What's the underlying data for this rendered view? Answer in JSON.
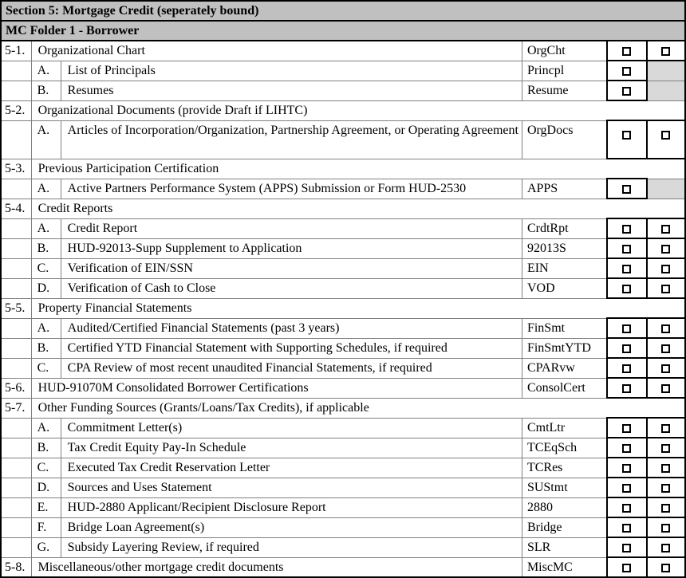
{
  "header": {
    "section_title": "Section 5: Mortgage Credit (seperately bound)",
    "folder_title": "MC Folder 1 - Borrower"
  },
  "colors": {
    "header_bg": "#c0c0c0",
    "shaded_cell_bg": "#d9d9d9",
    "grid_line": "#808080",
    "ink": "#000000"
  },
  "icons": {
    "checkbox_empty": "☐"
  },
  "table": {
    "rows": [
      {
        "type": "item",
        "num": "5-1.",
        "letter": "",
        "desc": "Organizational Chart",
        "code": "OrgCht",
        "cb1": "checkbox",
        "cb2": "checkbox"
      },
      {
        "type": "item",
        "num": "",
        "letter": "A.",
        "desc": "List of Principals",
        "code": "Princpl",
        "cb1": "checkbox",
        "cb2": "shaded"
      },
      {
        "type": "item",
        "num": "",
        "letter": "B.",
        "desc": "Resumes",
        "code": "Resume",
        "cb1": "checkbox",
        "cb2": "shaded"
      },
      {
        "type": "section",
        "num": "5-2.",
        "desc": "Organizational Documents (provide Draft if LIHTC)"
      },
      {
        "type": "item",
        "num": "",
        "letter": "A.",
        "desc": "Articles of Incorporation/Organization, Partnership Agreement, or Operating Agreement",
        "code": "OrgDocs",
        "cb1": "checkbox",
        "cb2": "checkbox",
        "tall": true
      },
      {
        "type": "section",
        "num": "5-3.",
        "desc": "Previous Participation Certification"
      },
      {
        "type": "item",
        "num": "",
        "letter": "A.",
        "desc": "Active Partners Performance System (APPS) Submission or Form HUD-2530",
        "code": "APPS",
        "cb1": "checkbox",
        "cb2": "shaded"
      },
      {
        "type": "section",
        "num": "5-4.",
        "desc": "Credit Reports"
      },
      {
        "type": "item",
        "num": "",
        "letter": "A.",
        "desc": "Credit Report",
        "code": "CrdtRpt",
        "cb1": "checkbox",
        "cb2": "checkbox"
      },
      {
        "type": "item",
        "num": "",
        "letter": "B.",
        "desc": "HUD-92013-Supp Supplement to Application",
        "code": "92013S",
        "cb1": "checkbox",
        "cb2": "checkbox"
      },
      {
        "type": "item",
        "num": "",
        "letter": "C.",
        "desc": "Verification of EIN/SSN",
        "code": "EIN",
        "cb1": "checkbox",
        "cb2": "checkbox"
      },
      {
        "type": "item",
        "num": "",
        "letter": "D.",
        "desc": "Verification of Cash to Close",
        "code": "VOD",
        "cb1": "checkbox",
        "cb2": "checkbox"
      },
      {
        "type": "section",
        "num": "5-5.",
        "desc": "Property Financial Statements"
      },
      {
        "type": "item",
        "num": "",
        "letter": "A.",
        "desc": "Audited/Certified Financial Statements (past 3 years)",
        "code": "FinSmt",
        "cb1": "checkbox",
        "cb2": "checkbox"
      },
      {
        "type": "item",
        "num": "",
        "letter": "B.",
        "desc": "Certified YTD Financial Statement with Supporting Schedules, if required",
        "code": "FinSmtYTD",
        "cb1": "checkbox",
        "cb2": "checkbox"
      },
      {
        "type": "item",
        "num": "",
        "letter": "C.",
        "desc": "CPA Review of most recent unaudited Financial Statements, if required",
        "code": "CPARvw",
        "cb1": "checkbox",
        "cb2": "checkbox"
      },
      {
        "type": "item",
        "num": "5-6.",
        "letter": "",
        "desc": "HUD-91070M Consolidated Borrower Certifications",
        "code": "ConsolCert",
        "cb1": "checkbox",
        "cb2": "checkbox"
      },
      {
        "type": "section",
        "num": "5-7.",
        "desc": "Other Funding Sources (Grants/Loans/Tax Credits), if applicable"
      },
      {
        "type": "item",
        "num": "",
        "letter": "A.",
        "desc": "Commitment Letter(s)",
        "code": "CmtLtr",
        "cb1": "checkbox",
        "cb2": "checkbox"
      },
      {
        "type": "item",
        "num": "",
        "letter": "B.",
        "desc": "Tax Credit Equity Pay-In Schedule",
        "code": "TCEqSch",
        "cb1": "checkbox",
        "cb2": "checkbox"
      },
      {
        "type": "item",
        "num": "",
        "letter": "C.",
        "desc": "Executed Tax Credit Reservation Letter",
        "code": "TCRes",
        "cb1": "checkbox",
        "cb2": "checkbox"
      },
      {
        "type": "item",
        "num": "",
        "letter": "D.",
        "desc": "Sources and Uses Statement",
        "code": "SUStmt",
        "cb1": "checkbox",
        "cb2": "checkbox"
      },
      {
        "type": "item",
        "num": "",
        "letter": "E.",
        "desc": "HUD-2880 Applicant/Recipient Disclosure Report",
        "code": "2880",
        "cb1": "checkbox",
        "cb2": "checkbox"
      },
      {
        "type": "item",
        "num": "",
        "letter": "F.",
        "desc": "Bridge Loan Agreement(s)",
        "code": "Bridge",
        "cb1": "checkbox",
        "cb2": "checkbox"
      },
      {
        "type": "item",
        "num": "",
        "letter": "G.",
        "desc": "Subsidy Layering Review, if required",
        "code": "SLR",
        "cb1": "checkbox",
        "cb2": "checkbox"
      },
      {
        "type": "item",
        "num": "5-8.",
        "letter": "",
        "desc": "Miscellaneous/other mortgage credit documents",
        "code": "MiscMC",
        "cb1": "checkbox",
        "cb2": "checkbox"
      }
    ]
  }
}
